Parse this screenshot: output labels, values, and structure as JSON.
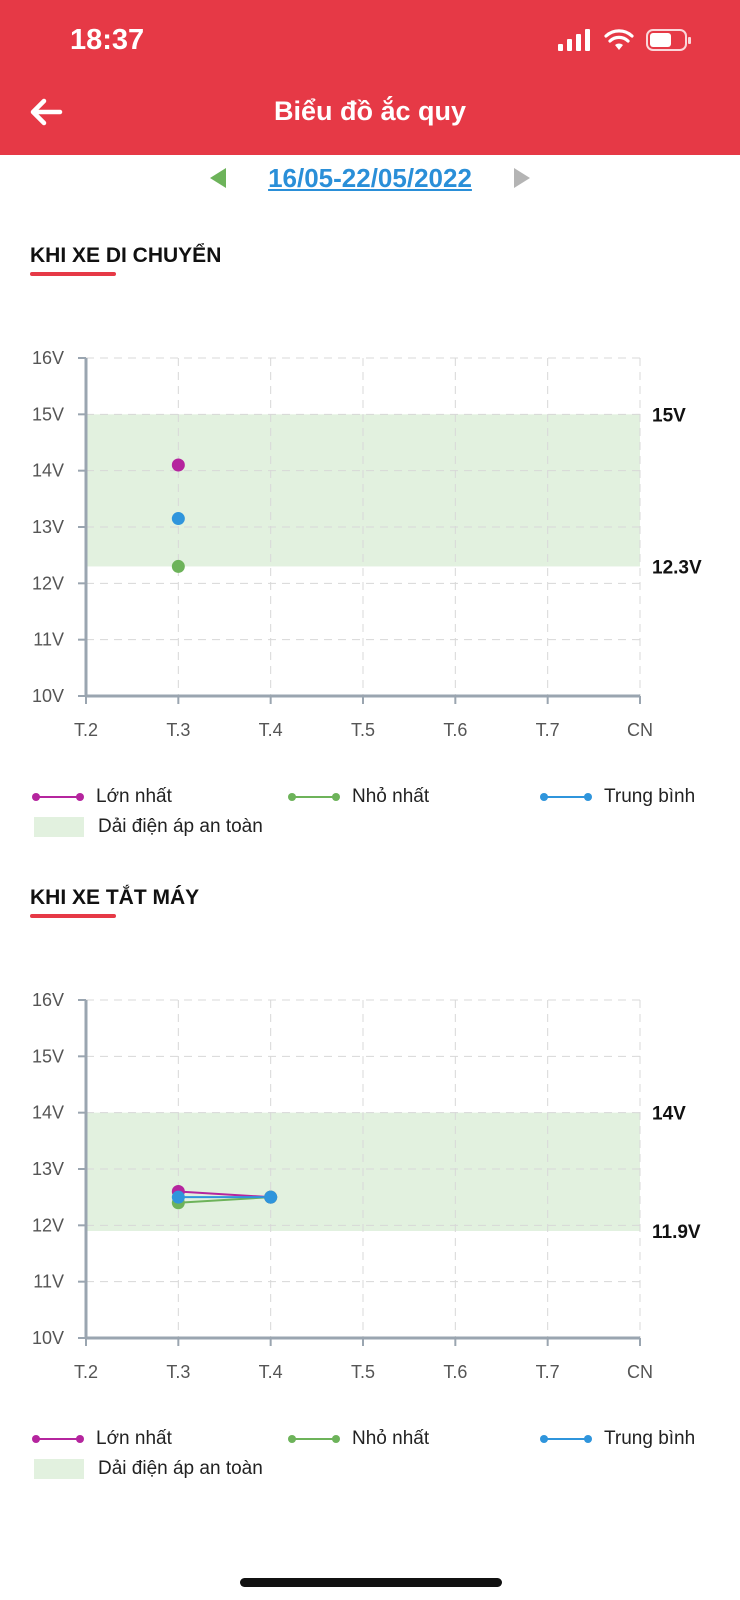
{
  "status_bar": {
    "time": "18:37"
  },
  "header": {
    "title": "Biểu đồ ắc quy"
  },
  "date_nav": {
    "range": "16/05-22/05/2022"
  },
  "sections": [
    {
      "title": "KHI XE DI CHUYỂN"
    },
    {
      "title": "KHI XE TẮT MÁY"
    }
  ],
  "legend": {
    "max": "Lớn nhất",
    "min": "Nhỏ nhất",
    "avg": "Trung bình",
    "safe": "Dải điện áp an toàn"
  },
  "colors": {
    "accent": "#e63946",
    "max": "#b5259e",
    "min": "#6db35a",
    "avg": "#2f95dc",
    "safe_band": "#e2f1df"
  },
  "chart_data": [
    {
      "type": "line",
      "categories": [
        "T.2",
        "T.3",
        "T.4",
        "T.5",
        "T.6",
        "T.7",
        "CN"
      ],
      "y_ticks": [
        "10V",
        "11V",
        "12V",
        "13V",
        "14V",
        "15V",
        "16V"
      ],
      "ylim": [
        10,
        16
      ],
      "safe_band": {
        "low": 12.3,
        "high": 15,
        "low_label": "12.3V",
        "high_label": "15V"
      },
      "series": [
        {
          "name": "Lớn nhất",
          "values": [
            null,
            14.1,
            null,
            null,
            null,
            null,
            null
          ]
        },
        {
          "name": "Nhỏ nhất",
          "values": [
            null,
            12.3,
            null,
            null,
            null,
            null,
            null
          ]
        },
        {
          "name": "Trung bình",
          "values": [
            null,
            13.15,
            null,
            null,
            null,
            null,
            null
          ]
        }
      ]
    },
    {
      "type": "line",
      "categories": [
        "T.2",
        "T.3",
        "T.4",
        "T.5",
        "T.6",
        "T.7",
        "CN"
      ],
      "y_ticks": [
        "10V",
        "11V",
        "12V",
        "13V",
        "14V",
        "15V",
        "16V"
      ],
      "ylim": [
        10,
        16
      ],
      "safe_band": {
        "low": 11.9,
        "high": 14,
        "low_label": "11.9V",
        "high_label": "14V"
      },
      "series": [
        {
          "name": "Lớn nhất",
          "values": [
            null,
            12.6,
            12.5,
            null,
            null,
            null,
            null
          ]
        },
        {
          "name": "Nhỏ nhất",
          "values": [
            null,
            12.4,
            12.5,
            null,
            null,
            null,
            null
          ]
        },
        {
          "name": "Trung bình",
          "values": [
            null,
            12.5,
            12.5,
            null,
            null,
            null,
            null
          ]
        }
      ]
    }
  ]
}
